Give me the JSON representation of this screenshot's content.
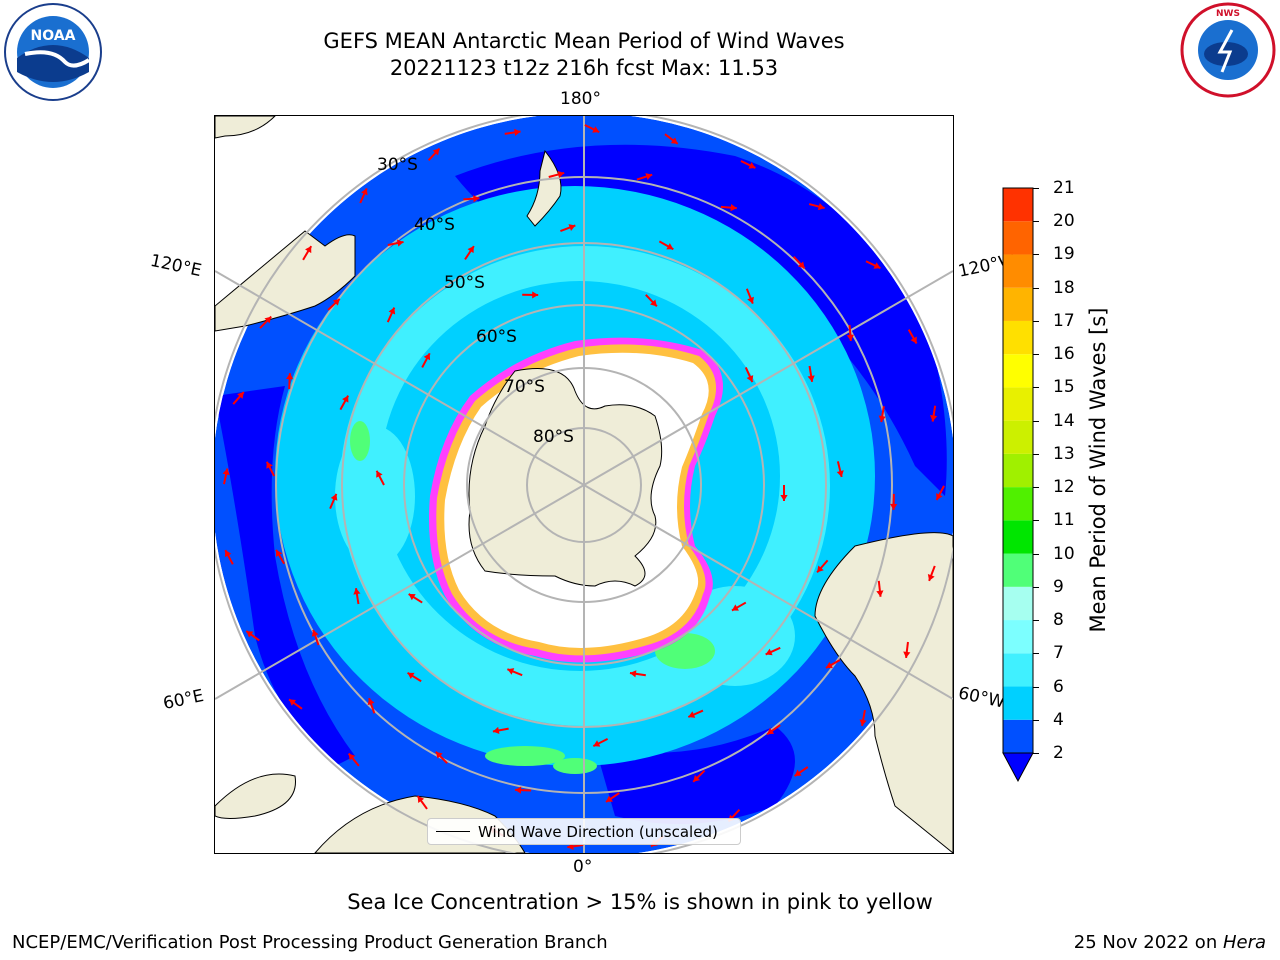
{
  "title": {
    "line1": "GEFS MEAN Antarctic Mean Period of Wind Waves",
    "line2": "20221123 t12z 216h fcst   Max: 11.53"
  },
  "map": {
    "lon_labels": {
      "top": "180°",
      "bottom": "0°",
      "left_upper": "120°E",
      "left_lower": "60°E",
      "right_upper": "120°W",
      "right_lower": "60°W"
    },
    "lat_labels": [
      "30°S",
      "40°S",
      "50°S",
      "60°S",
      "70°S",
      "80°S"
    ],
    "legend": "Wind Wave Direction (unscaled)"
  },
  "colorbar": {
    "label": "Mean Period of Wind Waves [s]",
    "ticks": [
      "2",
      "4",
      "6",
      "7",
      "8",
      "9",
      "10",
      "11",
      "12",
      "13",
      "14",
      "15",
      "16",
      "17",
      "18",
      "19",
      "20",
      "21"
    ],
    "colors": [
      "#0050ff",
      "#00d0ff",
      "#40f0ff",
      "#7cffff",
      "#a6fff0",
      "#50ff78",
      "#00e600",
      "#50f000",
      "#a0f000",
      "#ccf000",
      "#e8f000",
      "#ffff00",
      "#ffe000",
      "#ffb400",
      "#ff8c00",
      "#ff6400",
      "#ff3200",
      "#ff0000"
    ],
    "extend_color": "#0000ff"
  },
  "caption": "Sea Ice Concentration > 15% is shown in pink to yellow",
  "footer": {
    "left": "NCEP/EMC/Verification Post Processing Product Generation Branch",
    "right_date": "25 Nov 2022 on ",
    "right_machine": "Hera"
  },
  "logos": {
    "noaa": "NOAA",
    "nws": "NATIONAL WEATHER SERVICE"
  },
  "colors": {
    "land": "#efedd8",
    "deep_blue": "#0000ff",
    "ocean_mid": "#0050ff",
    "ocean_cyan": "#00d0ff",
    "ocean_light": "#40f0ff",
    "ice": "#ffffff",
    "ice_edge_pink": "#ff40ff",
    "ice_edge_yellow": "#ffc040",
    "arrow": "#ff0000"
  }
}
